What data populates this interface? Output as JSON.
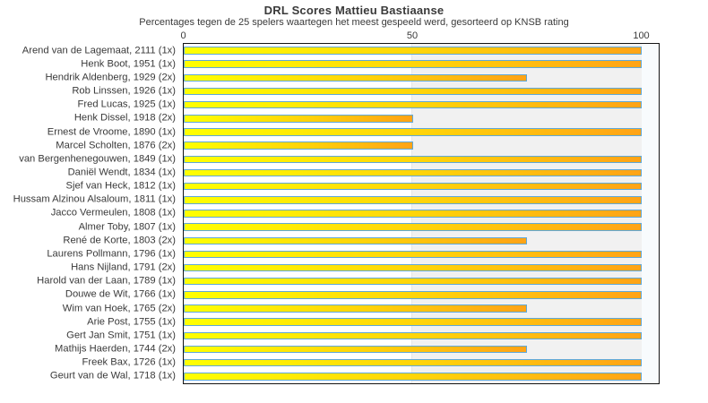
{
  "chart_data": {
    "type": "bar",
    "orientation": "horizontal",
    "title": "DRL Scores Mattieu Bastiaanse",
    "subtitle": "Percentages tegen de 25 spelers waartegen het meest gespeeld werd, gesorteerd op KNSB rating",
    "xlabel": "",
    "ylabel": "",
    "xlim": [
      0,
      103.7
    ],
    "xticks": [
      0,
      50,
      100
    ],
    "legend": "none",
    "grid": "shaded background band from 50 to 100",
    "categories": [
      "Arend van de Lagemaat, 2111 (1x)",
      "Henk Boot, 1951 (1x)",
      "Hendrik Aldenberg, 1929 (2x)",
      "Rob Linssen, 1926 (1x)",
      "Fred Lucas, 1925 (1x)",
      "Henk Dissel, 1918 (2x)",
      "Ernest de Vroome, 1890 (1x)",
      "Marcel Scholten, 1876 (2x)",
      "van Bergenhenegouwen, 1849 (1x)",
      "Daniël Wendt, 1834 (1x)",
      "Sjef van Heck, 1812 (1x)",
      "Hussam Alzinou Alsaloum, 1811 (1x)",
      "Jacco Vermeulen, 1808 (1x)",
      "Almer Toby, 1807 (1x)",
      "René de Korte, 1803 (2x)",
      "Laurens Pollmann, 1796 (1x)",
      "Hans Nijland, 1791 (2x)",
      "Harold van der Laan, 1789 (1x)",
      "Douwe de Wit, 1766 (1x)",
      "Wim van Hoek, 1765 (2x)",
      "Arie Post, 1755 (1x)",
      "Gert Jan Smit, 1751 (1x)",
      "Mathijs Haerden, 1744 (2x)",
      "Freek Bax, 1726 (1x)",
      "Geurt van de Wal, 1718 (1x)"
    ],
    "values": [
      100,
      100,
      75,
      100,
      100,
      50,
      100,
      50,
      100,
      100,
      100,
      100,
      100,
      100,
      75,
      100,
      100,
      100,
      100,
      75,
      100,
      100,
      75,
      100,
      100
    ],
    "colors": {
      "bar_gradient_start": "#ffff00",
      "bar_gradient_end": "#ffa316",
      "bar_border": "#5fa8d8",
      "band_0_50": "#ffffff",
      "band_50_100": "#f1f1f1",
      "right_margin_band": "#f8fbfd",
      "plot_border": "#141414",
      "text": "#3a3a3a"
    }
  }
}
